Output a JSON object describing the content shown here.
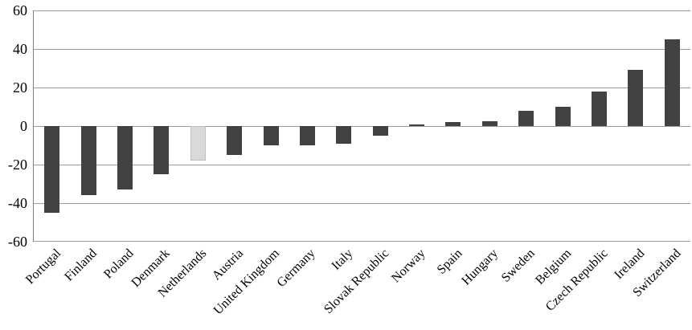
{
  "chart_data": {
    "type": "bar",
    "title": "",
    "xlabel": "",
    "ylabel": "",
    "categories": [
      "Portugal",
      "Finland",
      "Poland",
      "Denmark",
      "Netherlands",
      "Austria",
      "United Kingdom",
      "Germany",
      "Italy",
      "Slovak Republic",
      "Norway",
      "Spain",
      "Hungary",
      "Sweden",
      "Belgium",
      "Czech Republic",
      "Ireland",
      "Switzerland"
    ],
    "values": [
      -45,
      -36,
      -33,
      -25,
      -18,
      -15,
      -10,
      -10,
      -9,
      -5,
      1,
      2,
      2.5,
      8,
      10,
      18,
      29,
      45
    ],
    "highlight_category": "Netherlands",
    "highlight_index": 4,
    "ylim": [
      -60,
      60
    ],
    "yticks": [
      60,
      40,
      20,
      0,
      -20,
      -40,
      -60
    ],
    "grid": true,
    "legend_position": "none",
    "x_label_rotation_deg": 45,
    "bar_color": "#424242",
    "highlight_bar_color": "#d9d9d9",
    "highlight_bar_border": "#bfbfbf",
    "gridline_color": "#9d9d9d",
    "axis_color": "#7f7f7f",
    "text_color": "#000000"
  }
}
